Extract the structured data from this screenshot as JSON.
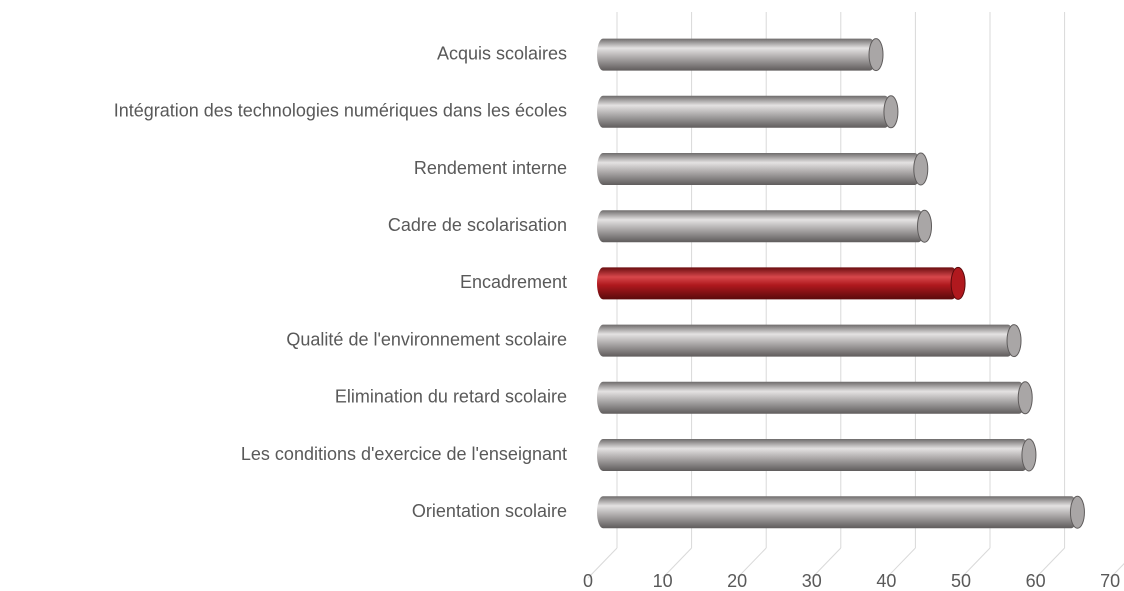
{
  "chart_data": {
    "type": "bar",
    "orientation": "horizontal",
    "categories": [
      "Acquis scolaires",
      "Intégration des technologies numériques dans les écoles",
      "Rendement interne",
      "Cadre de scolarisation",
      "Encadrement",
      "Qualité de l'environnement scolaire",
      "Elimination du retard scolaire",
      "Les conditions d'exercice de l'enseignant",
      "Orientation scolaire"
    ],
    "values": [
      37,
      39,
      43,
      43.5,
      48,
      55.5,
      57,
      57.5,
      64
    ],
    "colors": [
      "#a9a6a6",
      "#a9a6a6",
      "#a9a6a6",
      "#a9a6a6",
      "#b0191e",
      "#a9a6a6",
      "#a9a6a6",
      "#a9a6a6",
      "#a9a6a6"
    ],
    "xlim": [
      0,
      70
    ],
    "xticks": [
      0,
      10,
      20,
      30,
      40,
      50,
      60,
      70
    ],
    "grid": true
  }
}
